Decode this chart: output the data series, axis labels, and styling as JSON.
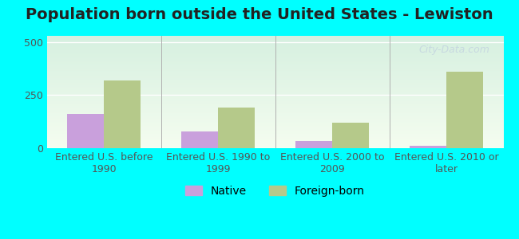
{
  "title": "Population born outside the United States - Lewiston",
  "categories": [
    "Entered U.S. before\n1990",
    "Entered U.S. 1990 to\n1999",
    "Entered U.S. 2000 to\n2009",
    "Entered U.S. 2010 or\nlater"
  ],
  "native_values": [
    160,
    80,
    35,
    10
  ],
  "foreign_values": [
    320,
    190,
    120,
    360
  ],
  "native_color": "#c9a0dc",
  "foreign_color": "#b5c98a",
  "background_color": "#00ffff",
  "plot_bg_color_top": "#e8f5e0",
  "plot_bg_color_bottom": "#f0fef5",
  "ylim": [
    0,
    530
  ],
  "yticks": [
    0,
    250,
    500
  ],
  "bar_width": 0.32,
  "title_fontsize": 14,
  "tick_fontsize": 9,
  "legend_fontsize": 10,
  "watermark_text": "City-Data.com",
  "watermark_color": "#c0cfe0",
  "watermark_alpha": 0.7
}
